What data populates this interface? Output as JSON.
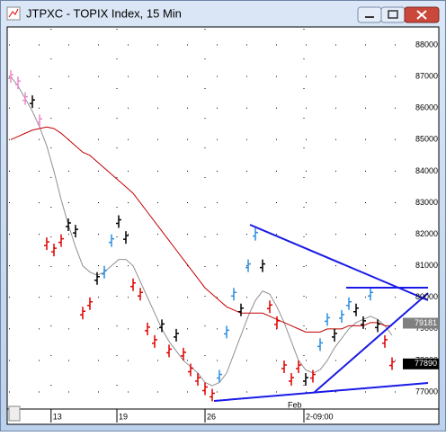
{
  "window_title": "JTPXC - TOPIX Index, 15 Min",
  "chart_data": {
    "type": "price-bars",
    "values": [
      87000,
      86800,
      86300,
      86200,
      85600,
      81700,
      81500,
      81800,
      82300,
      82100,
      79500,
      79800,
      80600,
      80800,
      81800,
      82400,
      81900,
      80400,
      80100,
      79000,
      78600,
      79100,
      78300,
      78800,
      78200,
      77700,
      77400,
      77100,
      76900,
      77500,
      78900,
      80100,
      79600,
      81000,
      82000,
      81000,
      79700,
      79200,
      77800,
      77400,
      77800,
      77400,
      77500,
      78500,
      79300,
      78800,
      79400,
      79800,
      79600,
      79200,
      80100,
      79100,
      78600,
      77900
    ],
    "colors": [
      "#ee88cc",
      "#ee88cc",
      "#ee88cc",
      "#000000",
      "#ee88cc",
      "#e00000",
      "#e00000",
      "#e00000",
      "#000000",
      "#000000",
      "#e00000",
      "#e00000",
      "#000000",
      "#2a8ee0",
      "#2a8ee0",
      "#000000",
      "#000000",
      "#e00000",
      "#e00000",
      "#e00000",
      "#e00000",
      "#000000",
      "#e00000",
      "#000000",
      "#e00000",
      "#e00000",
      "#e00000",
      "#e00000",
      "#e00000",
      "#2a8ee0",
      "#2a8ee0",
      "#2a8ee0",
      "#000000",
      "#2a8ee0",
      "#2a8ee0",
      "#000000",
      "#e00000",
      "#e00000",
      "#e00000",
      "#e00000",
      "#e00000",
      "#000000",
      "#e00000",
      "#2a8ee0",
      "#2a8ee0",
      "#000000",
      "#2a8ee0",
      "#2a8ee0",
      "#000000",
      "#000000",
      "#2a8ee0",
      "#000000",
      "#e00000",
      "#e00000"
    ],
    "averages": [
      {
        "color": "#909090",
        "values": [
          87000,
          86700,
          86300,
          85900,
          85400,
          84800,
          84000,
          83100,
          82300,
          81600,
          81000,
          80800,
          80700,
          80800,
          81000,
          81200,
          81200,
          81000,
          80500,
          80000,
          79500,
          79000,
          78600,
          78300,
          78000,
          77800,
          77600,
          77300,
          77200,
          77300,
          77600,
          78200,
          78800,
          79400,
          79900,
          80200,
          80100,
          79700,
          79200,
          78600,
          78000,
          77700,
          77600,
          77700,
          78000,
          78400,
          78700,
          79000,
          79200,
          79300,
          79400,
          79300,
          79100,
          78800
        ]
      },
      {
        "color": "#c00000",
        "values": [
          85000,
          85100,
          85200,
          85300,
          85350,
          85400,
          85350,
          85200,
          85000,
          84800,
          84600,
          84500,
          84300,
          84100,
          83900,
          83700,
          83500,
          83300,
          83000,
          82700,
          82400,
          82100,
          81800,
          81500,
          81200,
          80900,
          80600,
          80300,
          80100,
          79900,
          79700,
          79600,
          79500,
          79500,
          79500,
          79500,
          79400,
          79300,
          79200,
          79100,
          79000,
          78900,
          78900,
          78900,
          79000,
          79000,
          79000,
          79100,
          79100,
          79100,
          79200,
          79200,
          79100,
          79100
        ]
      }
    ],
    "xlim": [
      0,
      53
    ],
    "xticks": [
      {
        "value": 5.6,
        "label": "13"
      },
      {
        "value": 14.75,
        "label": "19"
      },
      {
        "value": 27,
        "label": "26"
      },
      {
        "value": 40.75,
        "label": "2-09:00"
      }
    ],
    "x_month_label": "Feb",
    "ylim": [
      76460,
      88570
    ],
    "yticks": [
      77000,
      78000,
      79000,
      80000,
      81000,
      82000,
      83000,
      84000,
      85000,
      86000,
      87000,
      88000
    ],
    "ma_value": 79181,
    "last_price": 77890,
    "grid": true
  }
}
